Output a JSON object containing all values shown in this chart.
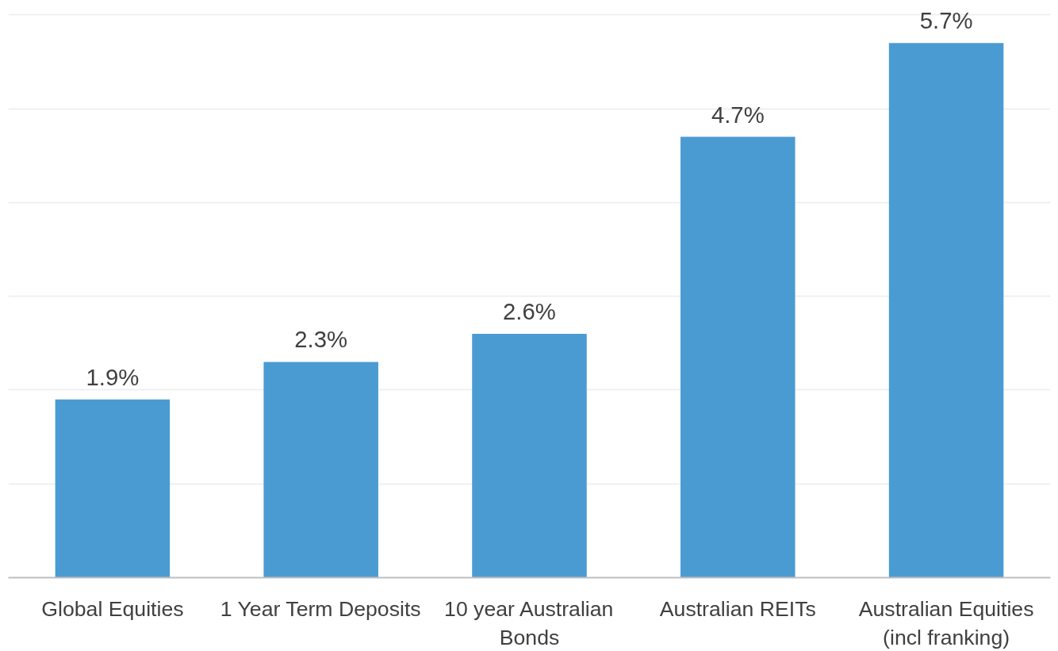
{
  "chart_data": {
    "type": "bar",
    "categories": [
      "Global Equities",
      "1 Year Term Deposits",
      "10 year Australian Bonds",
      "Australian REITs",
      "Australian Equities (incl franking)"
    ],
    "values": [
      1.9,
      2.3,
      2.6,
      4.7,
      5.7
    ],
    "color": "#4b9bd3",
    "value_labels": [
      "1.9%",
      "2.3%",
      "2.6%",
      "4.7%",
      "5.7%"
    ],
    "grid": "y",
    "tick_labels": "x"
  }
}
